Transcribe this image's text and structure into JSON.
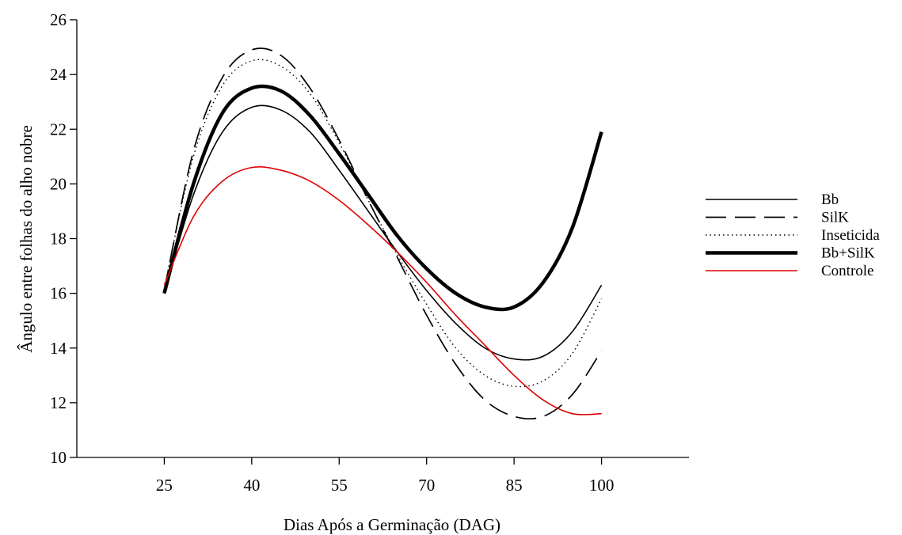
{
  "chart_data": {
    "type": "line",
    "xlabel": "Dias Após a Germinação (DAG)",
    "ylabel": "Ângulo entre folhas do alho nobre",
    "xlim": [
      10,
      115
    ],
    "ylim": [
      10,
      26
    ],
    "xticks": [
      25,
      40,
      55,
      70,
      85,
      100
    ],
    "yticks": [
      10,
      12,
      14,
      16,
      18,
      20,
      22,
      24,
      26
    ],
    "grid": false,
    "legend_position": "right",
    "series": [
      {
        "name": "Bb",
        "style": "solid",
        "color": "#000000",
        "x": [
          25,
          30,
          35,
          40,
          45,
          50,
          55,
          60,
          65,
          70,
          75,
          80,
          85,
          90,
          95,
          100
        ],
        "y": [
          16.0,
          19.6,
          21.9,
          22.8,
          22.7,
          21.9,
          20.5,
          19.0,
          17.5,
          16.1,
          14.9,
          14.0,
          13.6,
          13.7,
          14.6,
          16.3
        ]
      },
      {
        "name": "SilK",
        "style": "dashed",
        "color": "#000000",
        "x": [
          25,
          30,
          35,
          40,
          45,
          50,
          55,
          60,
          65,
          70,
          75,
          80,
          85,
          90,
          95,
          100
        ],
        "y": [
          16.1,
          21.2,
          23.9,
          24.9,
          24.7,
          23.5,
          21.6,
          19.4,
          17.3,
          15.2,
          13.4,
          12.1,
          11.5,
          11.5,
          12.3,
          13.9
        ]
      },
      {
        "name": "Inseticida",
        "style": "dotted",
        "color": "#000000",
        "x": [
          25,
          30,
          35,
          40,
          45,
          50,
          55,
          60,
          65,
          70,
          75,
          80,
          85,
          90,
          95,
          100
        ],
        "y": [
          16.2,
          21.0,
          23.6,
          24.5,
          24.3,
          23.3,
          21.5,
          19.4,
          17.4,
          15.6,
          14.0,
          13.0,
          12.6,
          12.8,
          13.8,
          15.8
        ]
      },
      {
        "name": "Bb+SilK",
        "style": "thick",
        "color": "#000000",
        "x": [
          25,
          30,
          35,
          40,
          45,
          50,
          55,
          60,
          65,
          70,
          75,
          80,
          85,
          90,
          95,
          100
        ],
        "y": [
          16.0,
          20.0,
          22.6,
          23.5,
          23.4,
          22.5,
          21.1,
          19.6,
          18.1,
          16.9,
          16.0,
          15.5,
          15.5,
          16.4,
          18.4,
          21.9
        ]
      },
      {
        "name": "Controle",
        "style": "solid",
        "color": "#e00000",
        "x": [
          25,
          30,
          35,
          40,
          45,
          50,
          55,
          60,
          65,
          70,
          75,
          80,
          85,
          90,
          95,
          100
        ],
        "y": [
          16.3,
          18.8,
          20.1,
          20.6,
          20.5,
          20.1,
          19.4,
          18.5,
          17.5,
          16.4,
          15.2,
          14.1,
          13.0,
          12.1,
          11.6,
          11.6
        ]
      }
    ]
  }
}
